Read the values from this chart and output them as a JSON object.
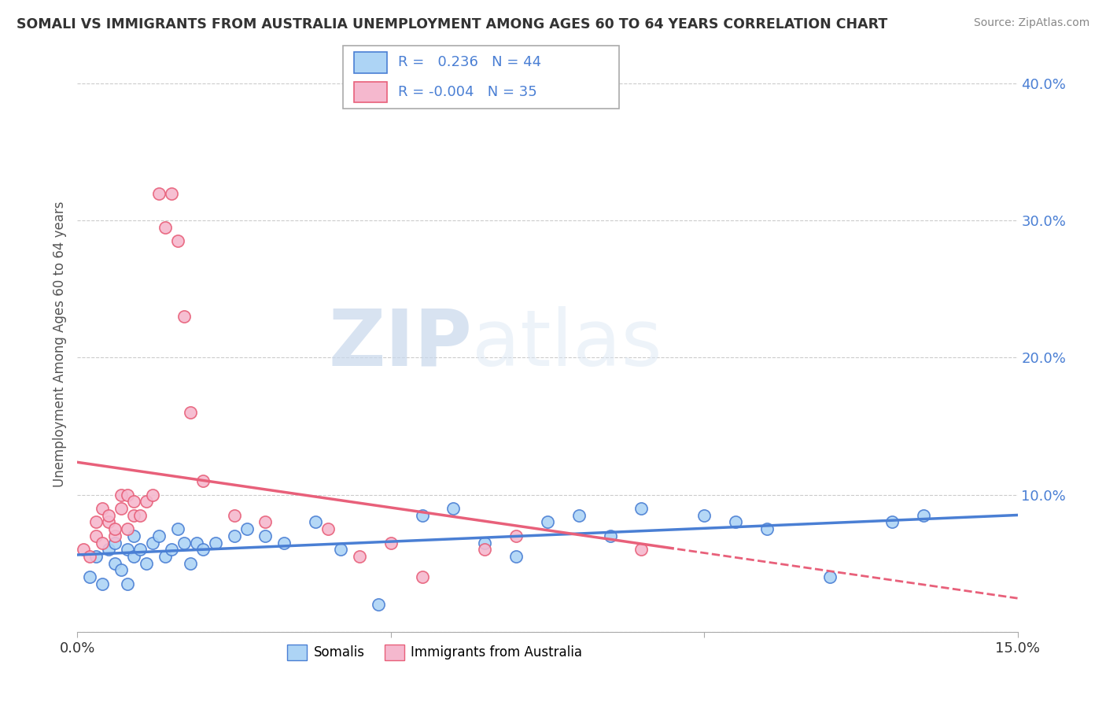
{
  "title": "SOMALI VS IMMIGRANTS FROM AUSTRALIA UNEMPLOYMENT AMONG AGES 60 TO 64 YEARS CORRELATION CHART",
  "source": "Source: ZipAtlas.com",
  "ylabel_label": "Unemployment Among Ages 60 to 64 years",
  "xlim": [
    0.0,
    0.15
  ],
  "ylim": [
    0.0,
    0.42
  ],
  "xticks": [
    0.0,
    0.05,
    0.1,
    0.15
  ],
  "xtick_labels": [
    "0.0%",
    "",
    "",
    "15.0%"
  ],
  "ytick_labels": [
    "",
    "10.0%",
    "20.0%",
    "30.0%",
    "40.0%"
  ],
  "yticks": [
    0.0,
    0.1,
    0.2,
    0.3,
    0.4
  ],
  "legend_somali": "Somalis",
  "legend_australia": "Immigrants from Australia",
  "R_somali": 0.236,
  "N_somali": 44,
  "R_australia": -0.004,
  "N_australia": 35,
  "somali_color": "#add4f5",
  "australia_color": "#f5b8ce",
  "somali_line_color": "#4a7fd4",
  "australia_line_color": "#e8607a",
  "watermark_zip": "ZIP",
  "watermark_atlas": "atlas",
  "somali_x": [
    0.002,
    0.003,
    0.004,
    0.005,
    0.006,
    0.006,
    0.007,
    0.008,
    0.008,
    0.009,
    0.009,
    0.01,
    0.011,
    0.012,
    0.013,
    0.014,
    0.015,
    0.016,
    0.017,
    0.018,
    0.019,
    0.02,
    0.022,
    0.025,
    0.027,
    0.03,
    0.033,
    0.038,
    0.042,
    0.048,
    0.055,
    0.06,
    0.065,
    0.07,
    0.075,
    0.08,
    0.085,
    0.09,
    0.1,
    0.105,
    0.11,
    0.12,
    0.13,
    0.135
  ],
  "somali_y": [
    0.04,
    0.055,
    0.035,
    0.06,
    0.05,
    0.065,
    0.045,
    0.06,
    0.035,
    0.07,
    0.055,
    0.06,
    0.05,
    0.065,
    0.07,
    0.055,
    0.06,
    0.075,
    0.065,
    0.05,
    0.065,
    0.06,
    0.065,
    0.07,
    0.075,
    0.07,
    0.065,
    0.08,
    0.06,
    0.02,
    0.085,
    0.09,
    0.065,
    0.055,
    0.08,
    0.085,
    0.07,
    0.09,
    0.085,
    0.08,
    0.075,
    0.04,
    0.08,
    0.085
  ],
  "australia_x": [
    0.001,
    0.002,
    0.003,
    0.003,
    0.004,
    0.004,
    0.005,
    0.005,
    0.006,
    0.006,
    0.007,
    0.007,
    0.008,
    0.008,
    0.009,
    0.009,
    0.01,
    0.011,
    0.012,
    0.013,
    0.014,
    0.015,
    0.016,
    0.017,
    0.018,
    0.02,
    0.025,
    0.03,
    0.04,
    0.045,
    0.05,
    0.055,
    0.065,
    0.07,
    0.09
  ],
  "australia_y": [
    0.06,
    0.055,
    0.07,
    0.08,
    0.065,
    0.09,
    0.08,
    0.085,
    0.07,
    0.075,
    0.1,
    0.09,
    0.075,
    0.1,
    0.085,
    0.095,
    0.085,
    0.095,
    0.1,
    0.32,
    0.295,
    0.32,
    0.285,
    0.23,
    0.16,
    0.11,
    0.085,
    0.08,
    0.075,
    0.055,
    0.065,
    0.04,
    0.06,
    0.07,
    0.06
  ],
  "background_color": "#ffffff",
  "grid_color": "#cccccc"
}
